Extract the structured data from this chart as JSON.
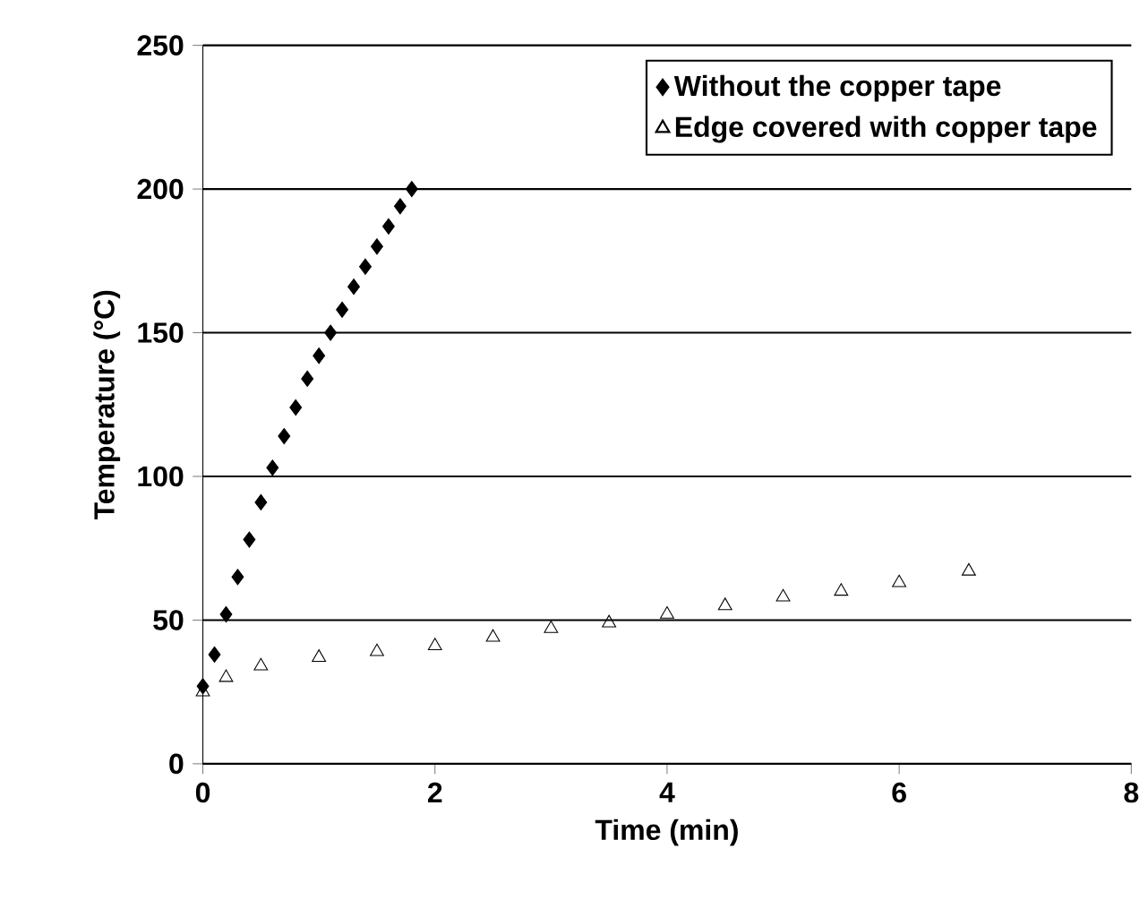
{
  "chart_data": {
    "type": "scatter",
    "xlabel": "Time (min)",
    "ylabel": "Temperature (°C)",
    "xlim": [
      0,
      8
    ],
    "ylim": [
      0,
      250
    ],
    "xticks": [
      0,
      2,
      4,
      6,
      8
    ],
    "yticks": [
      0,
      50,
      100,
      150,
      200,
      250
    ],
    "grid": "y",
    "legend": "top right",
    "series": [
      {
        "name": "Without the copper tape",
        "color": "#000000",
        "marker": "diamond",
        "x": [
          0,
          0.1,
          0.2,
          0.3,
          0.4,
          0.5,
          0.6,
          0.7,
          0.8,
          0.9,
          1.0,
          1.1,
          1.2,
          1.3,
          1.4,
          1.5,
          1.6,
          1.7,
          1.8
        ],
        "values": [
          27,
          38,
          52,
          65,
          78,
          91,
          103,
          114,
          124,
          134,
          142,
          150,
          158,
          166,
          173,
          180,
          187,
          194,
          200
        ]
      },
      {
        "name": "Edge covered with copper tape",
        "color": "#000000",
        "marker": "triangle",
        "x": [
          0,
          0.2,
          0.5,
          1,
          1.5,
          2,
          2.5,
          3,
          3.5,
          4,
          4.5,
          5,
          5.5,
          6,
          6.6
        ],
        "values": [
          25,
          30,
          34,
          37,
          39,
          41,
          44,
          47,
          49,
          52,
          55,
          58,
          60,
          63,
          67
        ]
      }
    ]
  }
}
